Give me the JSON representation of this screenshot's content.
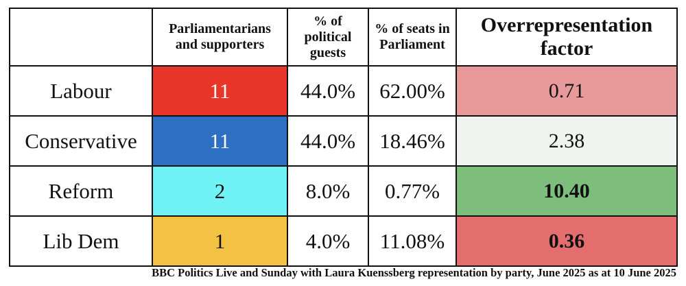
{
  "headers": {
    "party": "",
    "count": "Parliamentarians and supporters",
    "guests_pct": "% of political guests",
    "seats_pct": "% of seats in Parliament",
    "factor": "Overrepresentation factor"
  },
  "rows": [
    {
      "party": "Labour",
      "count": "11",
      "guests_pct": "44.0%",
      "seats_pct": "62.00%",
      "factor": "0.71",
      "party_color": "#e8372a",
      "count_text_color": "#ffffff",
      "factor_color": "#e89a9a",
      "factor_bold": false
    },
    {
      "party": "Conservative",
      "count": "11",
      "guests_pct": "44.0%",
      "seats_pct": "18.46%",
      "factor": "2.38",
      "party_color": "#2e6fc4",
      "count_text_color": "#ffffff",
      "factor_color": "#f0f4f0",
      "factor_bold": false
    },
    {
      "party": "Reform",
      "count": "2",
      "guests_pct": "8.0%",
      "seats_pct": "0.77%",
      "factor": "10.40",
      "party_color": "#6ff3f7",
      "count_text_color": "#111111",
      "factor_color": "#7dbe7d",
      "factor_bold": true
    },
    {
      "party": "Lib Dem",
      "count": "1",
      "guests_pct": "4.0%",
      "seats_pct": "11.08%",
      "factor": "0.36",
      "party_color": "#f4c242",
      "count_text_color": "#111111",
      "factor_color": "#e46e6e",
      "factor_bold": true
    }
  ],
  "caption": "BBC Politics Live and Sunday with Laura Kuenssberg representation by party, June 2025 as at 10 June 2025"
}
